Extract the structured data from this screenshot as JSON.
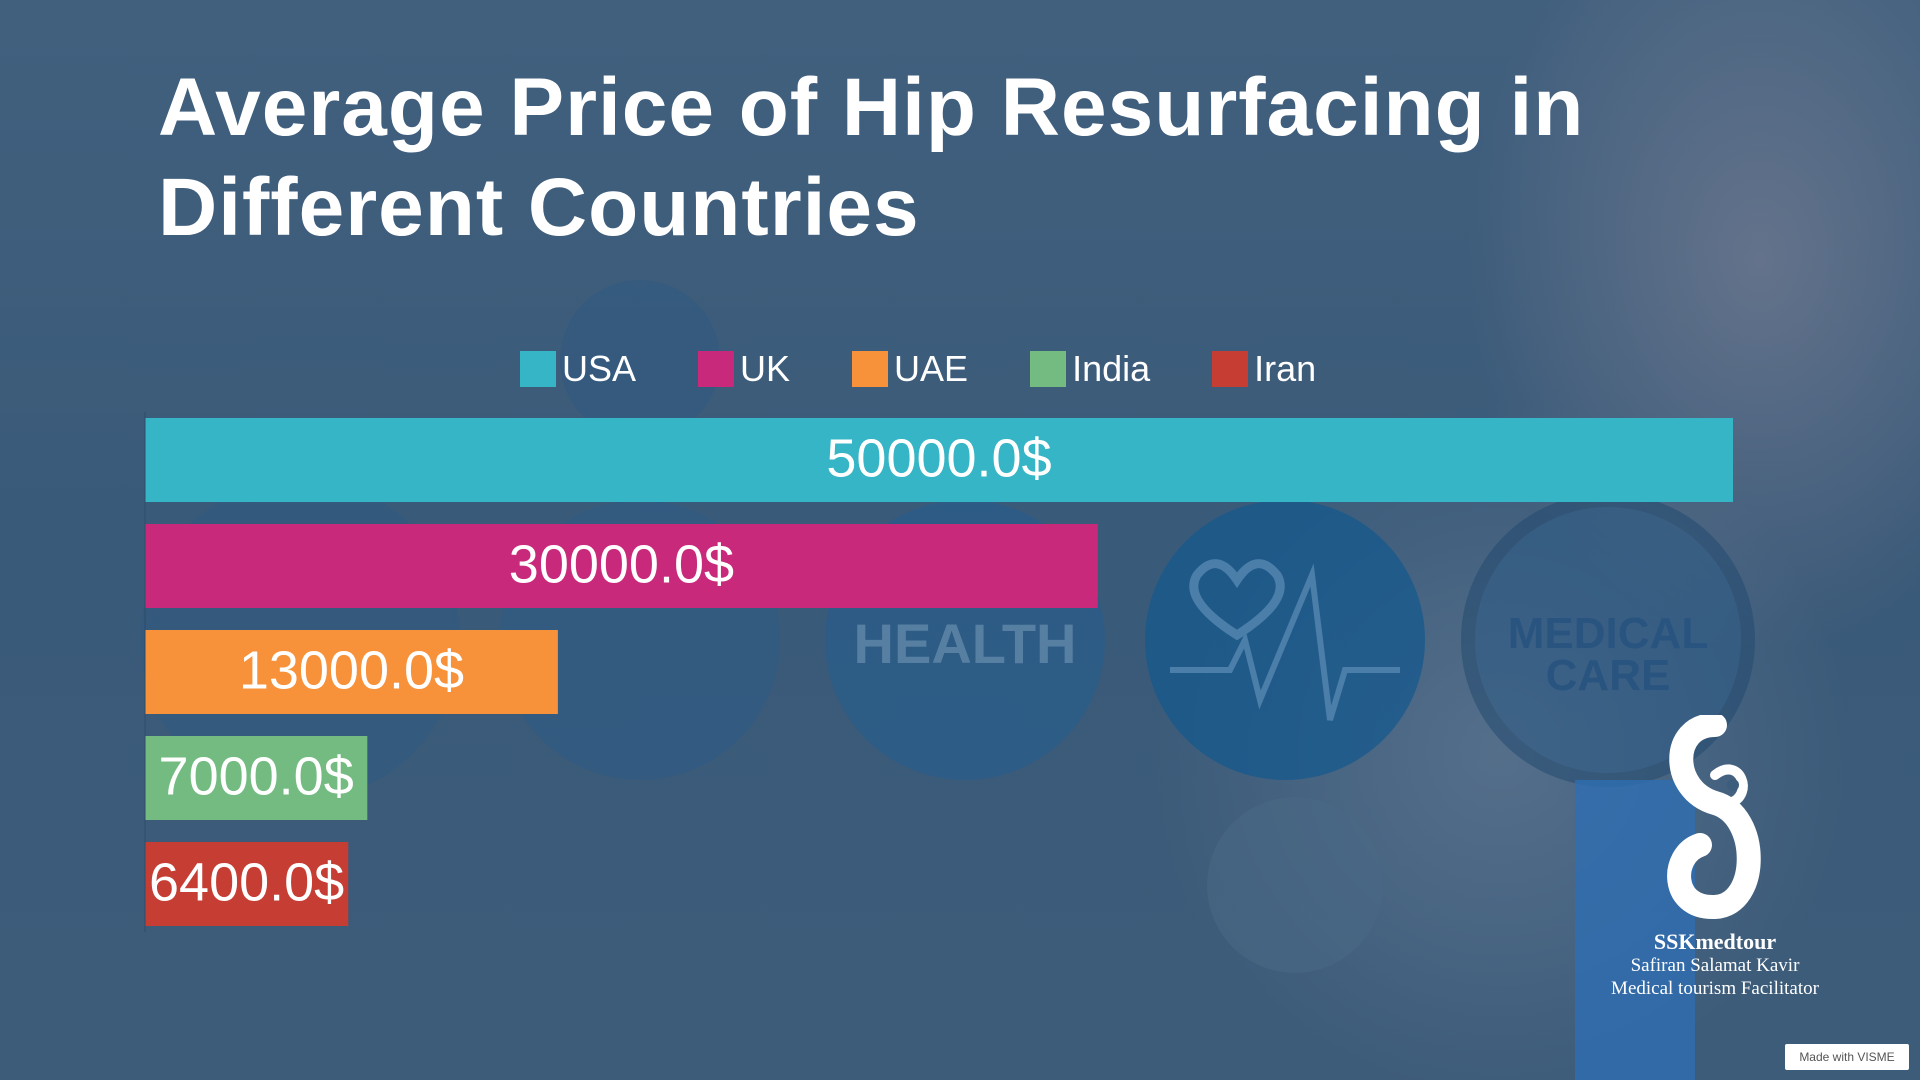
{
  "chart_data": {
    "type": "bar",
    "orientation": "horizontal",
    "title": "Average Price of Hip Resurfacing in Different Countries",
    "categories": [
      "USA",
      "UK",
      "UAE",
      "India",
      "Iran"
    ],
    "values": [
      50000,
      30000,
      13000,
      7000,
      6400
    ],
    "value_labels": [
      "50000.0$",
      "30000.0$",
      "13000.0$",
      "7000.0$",
      "6400.0$"
    ],
    "colors": [
      "#35b5c6",
      "#c9297b",
      "#f7913a",
      "#74bb82",
      "#c63d34"
    ],
    "xlim": [
      0,
      50000
    ],
    "legend_position": "top",
    "grid": false
  },
  "background_icons": {
    "health_text": "HEALTH",
    "medical_text": "MEDICAL",
    "care_text": "CARE"
  },
  "brand": {
    "name": "SSKmedtour",
    "line1": "Safiran Salamat Kavir",
    "line2": "Medical tourism Facilitator"
  },
  "watermark": "Made with VISME"
}
